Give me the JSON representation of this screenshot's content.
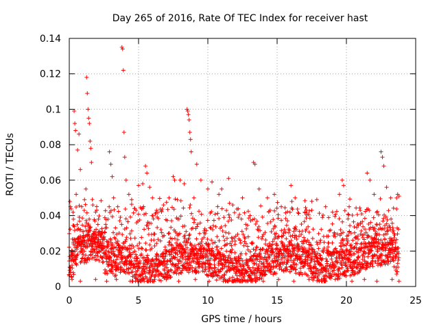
{
  "chart_data": {
    "type": "scatter",
    "title": "Day 265 of 2016, Rate Of TEC Index for receiver hast",
    "xlabel": "GPS time / hours",
    "ylabel": "ROTI / TECUs",
    "xlim": [
      0,
      25
    ],
    "ylim": [
      0,
      0.14
    ],
    "xticks": [
      0,
      5,
      10,
      15,
      20,
      25
    ],
    "xtick_labels": [
      "0",
      "5",
      "10",
      "15",
      "20",
      "25"
    ],
    "yticks": [
      0,
      0.02,
      0.04,
      0.06,
      0.08,
      0.1,
      0.12,
      0.14
    ],
    "ytick_labels": [
      "0",
      "0.02",
      "0.04",
      "0.06",
      "0.08",
      "0.1",
      "0.12",
      "0.14"
    ],
    "grid": true,
    "marker": "plus",
    "colors": {
      "points": "#ff0000",
      "grid": "#a0a0a0",
      "axes": "#000000"
    },
    "series": [
      {
        "name": "ROTI",
        "points": [
          [
            0.1,
            0.008
          ],
          [
            0.2,
            0.012
          ],
          [
            0.3,
            0.025
          ],
          [
            0.3,
            0.038
          ],
          [
            0.35,
            0.099
          ],
          [
            0.4,
            0.092
          ],
          [
            0.45,
            0.088
          ],
          [
            0.5,
            0.052
          ],
          [
            0.6,
            0.077
          ],
          [
            0.7,
            0.086
          ],
          [
            0.8,
            0.066
          ],
          [
            0.9,
            0.045
          ],
          [
            1.0,
            0.031
          ],
          [
            1.1,
            0.049
          ],
          [
            1.2,
            0.055
          ],
          [
            1.25,
            0.118
          ],
          [
            1.3,
            0.109
          ],
          [
            1.35,
            0.1
          ],
          [
            1.4,
            0.095
          ],
          [
            1.45,
            0.092
          ],
          [
            1.5,
            0.082
          ],
          [
            1.55,
            0.078
          ],
          [
            1.6,
            0.07
          ],
          [
            1.7,
            0.046
          ],
          [
            1.9,
            0.042
          ],
          [
            2.1,
            0.038
          ],
          [
            2.3,
            0.03
          ],
          [
            2.5,
            0.028
          ],
          [
            2.9,
            0.076
          ],
          [
            3.0,
            0.069
          ],
          [
            3.1,
            0.062
          ],
          [
            3.2,
            0.05
          ],
          [
            3.5,
            0.045
          ],
          [
            3.8,
            0.135
          ],
          [
            3.85,
            0.134
          ],
          [
            3.9,
            0.122
          ],
          [
            3.95,
            0.087
          ],
          [
            4.0,
            0.073
          ],
          [
            4.1,
            0.06
          ],
          [
            4.3,
            0.052
          ],
          [
            4.5,
            0.049
          ],
          [
            4.7,
            0.044
          ],
          [
            5.0,
            0.057
          ],
          [
            5.3,
            0.058
          ],
          [
            5.5,
            0.068
          ],
          [
            5.6,
            0.064
          ],
          [
            5.8,
            0.056
          ],
          [
            6.0,
            0.05
          ],
          [
            6.3,
            0.043
          ],
          [
            6.8,
            0.046
          ],
          [
            7.2,
            0.05
          ],
          [
            7.5,
            0.062
          ],
          [
            7.6,
            0.06
          ],
          [
            7.8,
            0.049
          ],
          [
            8.0,
            0.06
          ],
          [
            8.3,
            0.058
          ],
          [
            8.5,
            0.1
          ],
          [
            8.55,
            0.099
          ],
          [
            8.6,
            0.097
          ],
          [
            8.65,
            0.094
          ],
          [
            8.7,
            0.087
          ],
          [
            8.75,
            0.083
          ],
          [
            8.8,
            0.076
          ],
          [
            9.0,
            0.05
          ],
          [
            9.2,
            0.069
          ],
          [
            9.5,
            0.06
          ],
          [
            10.0,
            0.055
          ],
          [
            10.3,
            0.059
          ],
          [
            10.8,
            0.052
          ],
          [
            11.0,
            0.055
          ],
          [
            11.5,
            0.061
          ],
          [
            11.8,
            0.046
          ],
          [
            12.5,
            0.05
          ],
          [
            13.3,
            0.07
          ],
          [
            13.4,
            0.069
          ],
          [
            13.7,
            0.055
          ],
          [
            14.3,
            0.05
          ],
          [
            14.8,
            0.052
          ],
          [
            15.3,
            0.045
          ],
          [
            16.0,
            0.057
          ],
          [
            16.3,
            0.05
          ],
          [
            17.0,
            0.042
          ],
          [
            17.5,
            0.043
          ],
          [
            18.5,
            0.045
          ],
          [
            19.0,
            0.042
          ],
          [
            19.5,
            0.052
          ],
          [
            19.7,
            0.06
          ],
          [
            19.8,
            0.057
          ],
          [
            20.2,
            0.045
          ],
          [
            21.0,
            0.043
          ],
          [
            21.5,
            0.064
          ],
          [
            21.7,
            0.06
          ],
          [
            22.0,
            0.052
          ],
          [
            22.5,
            0.076
          ],
          [
            22.6,
            0.073
          ],
          [
            22.7,
            0.068
          ],
          [
            22.9,
            0.056
          ],
          [
            23.2,
            0.05
          ],
          [
            23.7,
            0.052
          ],
          [
            23.8,
            0.051
          ],
          [
            0.2,
            0.004
          ],
          [
            0.8,
            0.003
          ],
          [
            1.9,
            0.004
          ],
          [
            2.7,
            0.003
          ],
          [
            3.4,
            0.004
          ],
          [
            4.4,
            0.003
          ],
          [
            5.2,
            0.004
          ],
          [
            6.1,
            0.003
          ],
          [
            7.0,
            0.004
          ],
          [
            7.9,
            0.003
          ],
          [
            9.1,
            0.004
          ],
          [
            10.1,
            0.003
          ],
          [
            11.2,
            0.004
          ],
          [
            12.1,
            0.003
          ],
          [
            13.1,
            0.004
          ],
          [
            14.0,
            0.003
          ],
          [
            15.1,
            0.004
          ],
          [
            16.2,
            0.003
          ],
          [
            17.3,
            0.004
          ],
          [
            18.2,
            0.003
          ],
          [
            19.2,
            0.004
          ],
          [
            20.4,
            0.003
          ],
          [
            21.3,
            0.004
          ],
          [
            22.2,
            0.003
          ],
          [
            23.3,
            0.004
          ],
          [
            23.8,
            0.003
          ]
        ]
      }
    ]
  }
}
